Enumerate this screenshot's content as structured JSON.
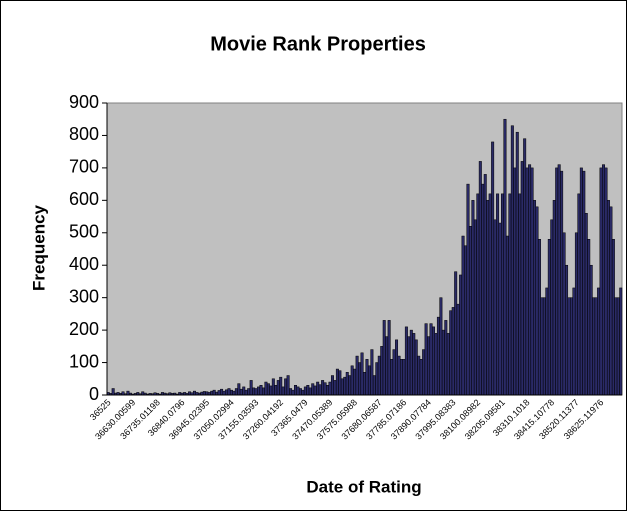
{
  "chart_data": {
    "type": "bar",
    "title": "Movie Rank Properties",
    "x_label": "Date of Rating",
    "y_label": "Frequency",
    "categories": [
      "36525",
      null,
      null,
      null,
      null,
      null,
      null,
      null,
      null,
      null,
      "36630.00599",
      null,
      null,
      null,
      null,
      null,
      null,
      null,
      null,
      null,
      "36735.01198",
      null,
      null,
      null,
      null,
      null,
      null,
      null,
      null,
      null,
      "36840.0796",
      null,
      null,
      null,
      null,
      null,
      null,
      null,
      null,
      null,
      "36945.02395",
      null,
      null,
      null,
      null,
      null,
      null,
      null,
      null,
      null,
      "37050.02994",
      null,
      null,
      null,
      null,
      null,
      null,
      null,
      null,
      null,
      "37155.03593",
      null,
      null,
      null,
      null,
      null,
      null,
      null,
      null,
      null,
      "37260.04192",
      null,
      null,
      null,
      null,
      null,
      null,
      null,
      null,
      null,
      "37365.0479",
      null,
      null,
      null,
      null,
      null,
      null,
      null,
      null,
      null,
      "37470.05389",
      null,
      null,
      null,
      null,
      null,
      null,
      null,
      null,
      null,
      "37575.05988",
      null,
      null,
      null,
      null,
      null,
      null,
      null,
      null,
      null,
      "37680.06587",
      null,
      null,
      null,
      null,
      null,
      null,
      null,
      null,
      null,
      "37785.07186",
      null,
      null,
      null,
      null,
      null,
      null,
      null,
      null,
      null,
      "37890.07784",
      null,
      null,
      null,
      null,
      null,
      null,
      null,
      null,
      null,
      "37995.08383",
      null,
      null,
      null,
      null,
      null,
      null,
      null,
      null,
      null,
      "38100.08982",
      null,
      null,
      null,
      null,
      null,
      null,
      null,
      null,
      null,
      "38205.09581",
      null,
      null,
      null,
      null,
      null,
      null,
      null,
      null,
      null,
      "38310.1018",
      null,
      null,
      null,
      null,
      null,
      null,
      null,
      null,
      null,
      "38415.10778",
      null,
      null,
      null,
      null,
      null,
      null,
      null,
      null,
      null,
      "38520.11377",
      null,
      null,
      null,
      null,
      null,
      null,
      null,
      null,
      null,
      "38625.11976",
      null,
      null,
      null,
      null,
      null,
      null,
      null,
      null
    ],
    "values": [
      8,
      5,
      20,
      6,
      8,
      5,
      10,
      4,
      12,
      6,
      3,
      5,
      8,
      4,
      10,
      6,
      3,
      5,
      4,
      7,
      5,
      3,
      8,
      6,
      4,
      7,
      5,
      6,
      3,
      8,
      6,
      8,
      5,
      10,
      7,
      12,
      8,
      6,
      9,
      11,
      10,
      8,
      12,
      15,
      9,
      14,
      18,
      12,
      16,
      20,
      15,
      12,
      20,
      35,
      18,
      25,
      15,
      20,
      45,
      22,
      20,
      25,
      30,
      22,
      40,
      35,
      28,
      50,
      30,
      45,
      55,
      25,
      50,
      60,
      20,
      15,
      30,
      25,
      20,
      15,
      25,
      30,
      22,
      35,
      28,
      40,
      32,
      45,
      38,
      30,
      40,
      60,
      45,
      80,
      75,
      50,
      55,
      70,
      60,
      90,
      80,
      120,
      100,
      130,
      70,
      110,
      90,
      140,
      60,
      100,
      120,
      150,
      230,
      180,
      230,
      110,
      140,
      170,
      120,
      110,
      110,
      210,
      180,
      200,
      190,
      170,
      120,
      110,
      140,
      220,
      180,
      220,
      210,
      190,
      240,
      300,
      200,
      230,
      190,
      260,
      270,
      380,
      280,
      370,
      490,
      460,
      650,
      520,
      600,
      540,
      620,
      720,
      650,
      680,
      600,
      620,
      780,
      540,
      620,
      530,
      620,
      850,
      490,
      620,
      830,
      700,
      810,
      620,
      720,
      790,
      700,
      710,
      700,
      600,
      580,
      480,
      300,
      300,
      330,
      480,
      540,
      600,
      700,
      710,
      690,
      500,
      400,
      300,
      300,
      330,
      500,
      620,
      700,
      690,
      560,
      480,
      400,
      300,
      300,
      330,
      700,
      710,
      700,
      600,
      580,
      480,
      300,
      300,
      330
    ],
    "color": "#2a2a66",
    "plot_background": "#c0c0c0",
    "ylim": [
      0,
      900
    ],
    "yticks": [
      0,
      100,
      200,
      300,
      400,
      500,
      600,
      700,
      800,
      900
    ]
  }
}
